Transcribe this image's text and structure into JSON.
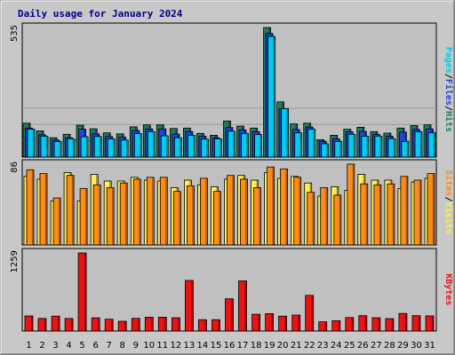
{
  "colors": {
    "hits": "#1e7b62",
    "files": "#2244dd",
    "pages": "#00cced",
    "visits": "#ffef55",
    "sites": "#ff8c1a",
    "kbytes": "#ee1111",
    "weekend_label": "#228877",
    "weekday_label": "#000000",
    "title": "#00008b",
    "plot_bg": "#c0c0c0",
    "frame_bg": "#c8c8c8"
  },
  "chart_data": {
    "type": "bar",
    "title": "Daily usage for January 2024",
    "categories": [
      "1",
      "2",
      "3",
      "4",
      "5",
      "6",
      "7",
      "8",
      "9",
      "10",
      "11",
      "12",
      "13",
      "14",
      "15",
      "16",
      "17",
      "18",
      "19",
      "20",
      "21",
      "22",
      "23",
      "24",
      "25",
      "26",
      "27",
      "28",
      "29",
      "30",
      "31"
    ],
    "weekend_days": [
      "6",
      "7",
      "13",
      "14",
      "20",
      "21",
      "27",
      "28"
    ],
    "panels": [
      {
        "name": "hits-files-pages",
        "max_label": "535",
        "ylim": [
          0,
          535
        ],
        "legend": [
          "Pages",
          "/",
          "Files",
          "/",
          "Hits"
        ],
        "series": [
          {
            "name": "Hits",
            "values": [
              140,
              108,
              80,
              94,
              132,
              117,
              100,
              96,
              125,
              133,
              133,
              118,
              120,
              98,
              90,
              149,
              128,
              120,
              535,
              228,
              137,
              140,
              72,
              90,
              115,
              123,
              105,
              99,
              120,
              130,
              133
            ]
          },
          {
            "name": "Files",
            "values": [
              120,
              92,
              70,
              80,
              115,
              96,
              85,
              82,
              110,
              116,
              116,
              95,
              106,
              86,
              80,
              122,
              112,
              105,
              510,
              200,
              114,
              124,
              65,
              75,
              104,
              106,
              93,
              86,
              103,
              114,
              116
            ]
          },
          {
            "name": "Pages",
            "values": [
              115,
              86,
              64,
              76,
              84,
              85,
              75,
              70,
              97,
              105,
              88,
              80,
              90,
              74,
              75,
              107,
              98,
              93,
              498,
              200,
              100,
              115,
              55,
              64,
              94,
              86,
              87,
              76,
              65,
              105,
              100
            ]
          }
        ]
      },
      {
        "name": "visits-sites",
        "max_label": "86",
        "ylim": [
          0,
          86
        ],
        "legend": [
          "Sites",
          "/",
          "Visits"
        ],
        "series": [
          {
            "name": "Visits",
            "values": [
              73,
              70,
              47,
              77,
              47,
              75,
              68,
              68,
              72,
              69,
              68,
              61,
              69,
              64,
              62,
              70,
              74,
              69,
              77,
              71,
              73,
              66,
              52,
              62,
              58,
              75,
              69,
              69,
              60,
              67,
              71
            ]
          },
          {
            "name": "Sites",
            "values": [
              80,
              76,
              50,
              74,
              60,
              64,
              61,
              66,
              70,
              72,
              72,
              57,
              63,
              71,
              57,
              74,
              70,
              61,
              83,
              81,
              72,
              56,
              61,
              53,
              86,
              65,
              64,
              65,
              73,
              69,
              76
            ]
          }
        ]
      },
      {
        "name": "kbytes",
        "max_label": "1259",
        "ylim": [
          0,
          1259
        ],
        "legend": [
          "KBytes"
        ],
        "series": [
          {
            "name": "KBytes",
            "values": [
              243,
              203,
              240,
              202,
              1259,
              213,
              190,
              158,
              204,
              223,
              223,
              214,
              815,
              183,
              183,
              519,
              808,
              270,
              280,
              241,
              257,
              575,
              149,
              166,
              217,
              248,
              214,
              201,
              283,
              247,
              244
            ]
          }
        ]
      }
    ]
  }
}
